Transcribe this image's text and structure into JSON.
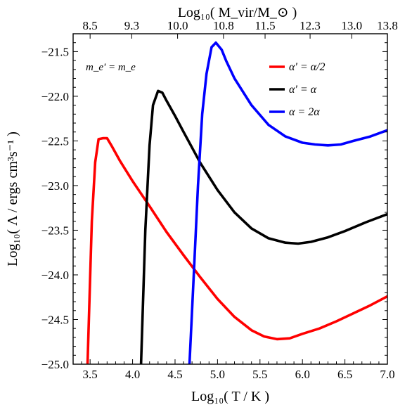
{
  "chart_data": {
    "type": "line",
    "xlabel": "Log₁₀( T / K )",
    "ylabel": "Log₁₀( Λ / ergs cm³s⁻¹ )",
    "x2label": "Log₁₀( M_vir/M_⊙ )",
    "xlim": [
      3.3,
      7.0
    ],
    "ylim": [
      -25.0,
      -21.3
    ],
    "x_ticks": [
      3.5,
      4.0,
      4.5,
      5.0,
      5.5,
      6.0,
      6.5,
      7.0
    ],
    "x_tick_labels": [
      "3.5",
      "4.0",
      "4.5",
      "5.0",
      "5.5",
      "6.0",
      "6.5",
      "7.0"
    ],
    "y_ticks": [
      -25.0,
      -24.5,
      -24.0,
      -23.5,
      -23.0,
      -22.5,
      -22.0,
      -21.5
    ],
    "y_tick_labels": [
      "−25.0",
      "−24.5",
      "−24.0",
      "−23.5",
      "−23.0",
      "−22.5",
      "−22.0",
      "−21.5"
    ],
    "top_ticks": [
      3.5,
      3.99,
      4.53,
      5.07,
      5.56,
      6.09,
      6.58,
      7.0
    ],
    "top_tick_labels": [
      "8.5",
      "9.3",
      "10.0",
      "10.8",
      "11.5",
      "12.3",
      "13.0",
      "13.8"
    ],
    "annotation": "m_e' = m_e",
    "legend_position": "top-right",
    "grid": false,
    "series": [
      {
        "name": "α' = α/2",
        "color": "#ff0000",
        "x": [
          3.47,
          3.52,
          3.56,
          3.6,
          3.65,
          3.7,
          3.75,
          3.85,
          4.0,
          4.2,
          4.4,
          4.6,
          4.8,
          5.0,
          5.2,
          5.4,
          5.55,
          5.7,
          5.85,
          6.0,
          6.2,
          6.4,
          6.6,
          6.8,
          7.0
        ],
        "y": [
          -25.0,
          -23.4,
          -22.74,
          -22.48,
          -22.47,
          -22.47,
          -22.55,
          -22.72,
          -22.95,
          -23.23,
          -23.52,
          -23.78,
          -24.03,
          -24.27,
          -24.47,
          -24.62,
          -24.69,
          -24.72,
          -24.71,
          -24.66,
          -24.6,
          -24.52,
          -24.43,
          -24.34,
          -24.24
        ]
      },
      {
        "name": "α' = α",
        "color": "#000000",
        "x": [
          4.1,
          4.15,
          4.2,
          4.24,
          4.3,
          4.35,
          4.4,
          4.5,
          4.6,
          4.8,
          5.0,
          5.2,
          5.4,
          5.6,
          5.8,
          5.95,
          6.1,
          6.3,
          6.5,
          6.75,
          7.0
        ],
        "y": [
          -25.0,
          -23.5,
          -22.55,
          -22.1,
          -21.94,
          -21.96,
          -22.05,
          -22.22,
          -22.4,
          -22.75,
          -23.05,
          -23.3,
          -23.48,
          -23.59,
          -23.64,
          -23.65,
          -23.63,
          -23.58,
          -23.51,
          -23.41,
          -23.32
        ]
      },
      {
        "name": "α = 2α",
        "color": "#0000ff",
        "x": [
          4.67,
          4.72,
          4.77,
          4.82,
          4.87,
          4.93,
          4.98,
          5.05,
          5.1,
          5.2,
          5.4,
          5.6,
          5.8,
          6.0,
          6.15,
          6.3,
          6.45,
          6.6,
          6.8,
          7.0
        ],
        "y": [
          -25.0,
          -24.0,
          -23.0,
          -22.2,
          -21.75,
          -21.45,
          -21.4,
          -21.48,
          -21.6,
          -21.8,
          -22.1,
          -22.32,
          -22.45,
          -22.52,
          -22.54,
          -22.55,
          -22.54,
          -22.5,
          -22.45,
          -22.38
        ]
      }
    ]
  }
}
